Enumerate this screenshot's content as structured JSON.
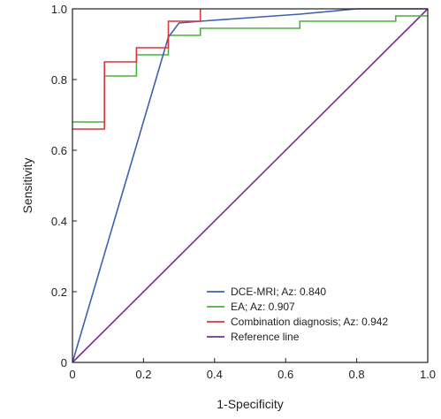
{
  "chart_data": {
    "type": "line",
    "xlabel": "1-Specificity",
    "ylabel": "Sensitivity",
    "xlim": [
      0,
      1.0
    ],
    "ylim": [
      0,
      1.0
    ],
    "x_ticks": [
      "0",
      "0.2",
      "0.4",
      "0.6",
      "0.8",
      "1.0"
    ],
    "y_ticks": [
      "0",
      "0.2",
      "0.4",
      "0.6",
      "0.8",
      "1.0"
    ],
    "grid": false,
    "legend_position": "bottom-right",
    "series": [
      {
        "name": "DCE-MRI; Az: 0.840",
        "color": "#3f5fb0",
        "x": [
          0,
          0.27,
          0.3,
          0.36,
          0.5,
          0.64,
          0.8,
          1.0
        ],
        "y": [
          0,
          0.92,
          0.96,
          0.965,
          0.975,
          0.985,
          1.0,
          1.0
        ]
      },
      {
        "name": "EA; Az: 0.907",
        "color": "#4caf3e",
        "x": [
          0,
          0.09,
          0.09,
          0.18,
          0.18,
          0.27,
          0.27,
          0.36,
          0.36,
          0.64,
          0.64,
          0.91,
          0.91,
          1.0
        ],
        "y": [
          0.68,
          0.68,
          0.81,
          0.81,
          0.87,
          0.87,
          0.925,
          0.925,
          0.945,
          0.945,
          0.965,
          0.965,
          0.98,
          0.98
        ]
      },
      {
        "name": "Combination diagnosis; Az: 0.942",
        "color": "#d9363e",
        "x": [
          0,
          0.09,
          0.09,
          0.18,
          0.18,
          0.27,
          0.27,
          0.36,
          0.36
        ],
        "y": [
          0.66,
          0.66,
          0.85,
          0.85,
          0.89,
          0.89,
          0.965,
          0.965,
          1.0
        ]
      },
      {
        "name": "Reference line",
        "color": "#7b2d8e",
        "x": [
          0,
          1.0
        ],
        "y": [
          0,
          1.0
        ]
      }
    ]
  }
}
